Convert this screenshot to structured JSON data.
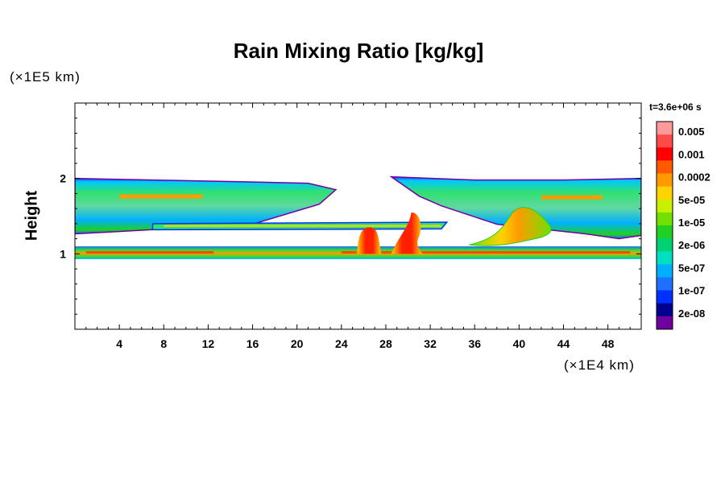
{
  "chart_data": {
    "type": "heatmap",
    "title": "Rain Mixing Ratio [kg/kg]",
    "xlabel": "",
    "ylabel": "Height",
    "x_unit": "(×1E4 km)",
    "y_unit": "(×1E5 km)",
    "time_label": "t=3.6e+06 s",
    "xlim": [
      0,
      51
    ],
    "ylim": [
      0,
      3
    ],
    "x_ticks": [
      4,
      8,
      12,
      16,
      20,
      24,
      28,
      32,
      36,
      40,
      44,
      48
    ],
    "y_ticks": [
      1,
      2
    ],
    "colorbar": {
      "labels": [
        "0.005",
        "0.001",
        "0.0002",
        "5e-05",
        "1e-05",
        "2e-06",
        "5e-07",
        "1e-07",
        "2e-08"
      ],
      "colors": [
        "#ff9a9a",
        "#ff4a4a",
        "#ff0000",
        "#ff5a00",
        "#ff9a00",
        "#ffd200",
        "#c8f000",
        "#70e000",
        "#20d020",
        "#00d070",
        "#00e0c0",
        "#00b0ff",
        "#2070ff",
        "#0030ff",
        "#000090",
        "#7000a0"
      ]
    },
    "layers": [
      {
        "name": "upper-layer",
        "x_range": [
          0,
          51
        ],
        "y_range": [
          1.35,
          2.0
        ]
      },
      {
        "name": "lower-layer",
        "x_range": [
          0,
          51
        ],
        "y_range": [
          0.93,
          1.1
        ]
      },
      {
        "name": "plume-1",
        "x": 26.5,
        "y_range": [
          1.0,
          1.35
        ]
      },
      {
        "name": "plume-2",
        "x": 30.5,
        "y_range": [
          1.0,
          1.55
        ]
      },
      {
        "name": "plume-3",
        "x": 40.5,
        "y_range": [
          1.1,
          1.65
        ]
      }
    ]
  }
}
